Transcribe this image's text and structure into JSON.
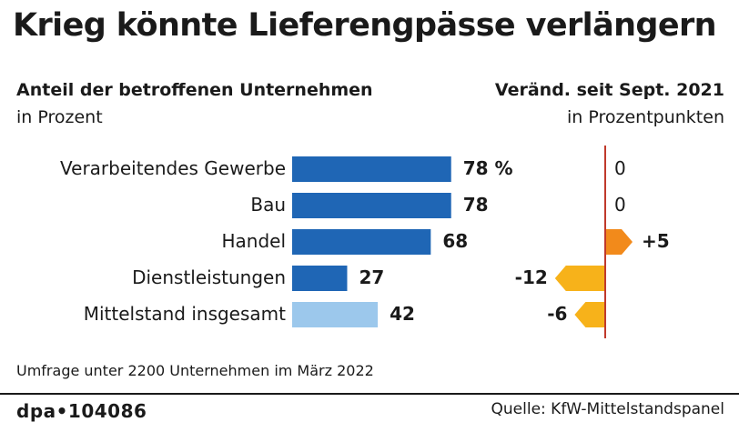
{
  "title": "Krieg könnte Lieferengpässe verlängern",
  "left_header": {
    "title": "Anteil der betroffenen Unternehmen",
    "subtitle": "in Prozent"
  },
  "right_header": {
    "title": "Veränd. seit Sept. 2021",
    "subtitle": "in Prozentpunkten"
  },
  "chart_data": [
    {
      "type": "bar",
      "orientation": "horizontal",
      "title": "Anteil der betroffenen Unternehmen",
      "unit": "in Prozent",
      "categories": [
        "Verarbeitendes Gewerbe",
        "Bau",
        "Handel",
        "Dienstleistungen",
        "Mittelstand insgesamt"
      ],
      "values": [
        78,
        78,
        68,
        27,
        42
      ],
      "value_labels": [
        "78 %",
        "78",
        "68",
        "27",
        "42"
      ],
      "colors": [
        "#1f66b5",
        "#1f66b5",
        "#1f66b5",
        "#1f66b5",
        "#9cc8ec"
      ],
      "xlim": [
        0,
        100
      ]
    },
    {
      "type": "bar",
      "orientation": "horizontal",
      "title": "Veränd. seit Sept. 2021",
      "unit": "in Prozentpunkten",
      "categories": [
        "Verarbeitendes Gewerbe",
        "Bau",
        "Handel",
        "Dienstleistungen",
        "Mittelstand insgesamt"
      ],
      "values": [
        0,
        0,
        5,
        -12,
        -6
      ],
      "value_labels": [
        "0",
        "0",
        "+5",
        "-12",
        "-6"
      ],
      "colors": {
        "positive": "#f28a1b",
        "negative": "#f7b21a",
        "zero_line": "#c0392b"
      }
    }
  ],
  "footnote": "Umfrage unter 2200 Unternehmen im März 2022",
  "agency": "dpa•104086",
  "source": "Quelle: KfW-Mittelstandspanel"
}
